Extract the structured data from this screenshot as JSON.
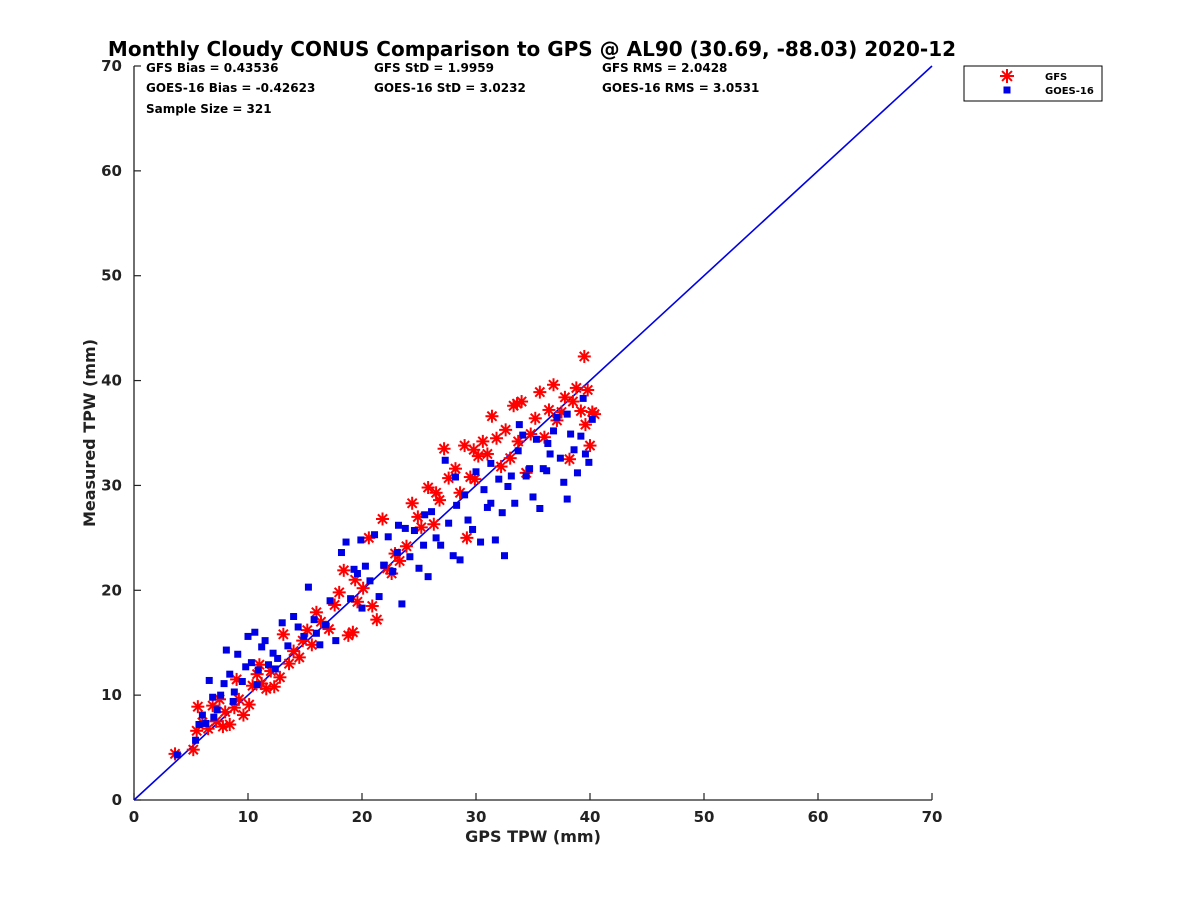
{
  "chart_data": {
    "type": "scatter",
    "title": "Monthly Cloudy CONUS Comparison to GPS @ AL90 (30.69, -88.03) 2020-12",
    "xlabel": "GPS TPW (mm)",
    "ylabel": "Measured TPW (mm)",
    "xlim": [
      0,
      70
    ],
    "ylim": [
      0,
      70
    ],
    "xticks": [
      "0",
      "10",
      "20",
      "30",
      "40",
      "50",
      "60",
      "70"
    ],
    "yticks": [
      "0",
      "10",
      "20",
      "30",
      "40",
      "50",
      "60",
      "70"
    ],
    "grid": false,
    "legend_position": "top-right",
    "reference_line": {
      "from": [
        0,
        0
      ],
      "to": [
        70,
        70
      ],
      "color": "#0000e6"
    },
    "stats": [
      [
        "GFS Bias = 0.43536",
        "GFS StD = 1.9959",
        "GFS RMS = 2.0428"
      ],
      [
        "GOES-16 Bias = -0.42623",
        "GOES-16 StD = 3.0232",
        "GOES-16 RMS = 3.0531"
      ],
      [
        "Sample Size = 321",
        "",
        ""
      ]
    ],
    "series": [
      {
        "name": "GFS",
        "marker": "asterisk",
        "color": "#ff0000",
        "points": [
          [
            3.6,
            4.4
          ],
          [
            5.2,
            4.8
          ],
          [
            5.5,
            6.6
          ],
          [
            5.6,
            8.9
          ],
          [
            6.0,
            7.4
          ],
          [
            6.5,
            6.8
          ],
          [
            6.9,
            9.0
          ],
          [
            7.2,
            7.5
          ],
          [
            7.8,
            7.0
          ],
          [
            8.0,
            8.4
          ],
          [
            8.4,
            7.2
          ],
          [
            8.8,
            8.8
          ],
          [
            9.2,
            9.6
          ],
          [
            9.6,
            8.1
          ],
          [
            10.1,
            9.1
          ],
          [
            10.4,
            10.9
          ],
          [
            10.8,
            12.0
          ],
          [
            11.2,
            11.1
          ],
          [
            11.6,
            10.6
          ],
          [
            12.0,
            12.3
          ],
          [
            12.3,
            10.8
          ],
          [
            12.8,
            11.7
          ],
          [
            13.1,
            15.8
          ],
          [
            13.6,
            13.0
          ],
          [
            14.0,
            14.2
          ],
          [
            14.5,
            13.6
          ],
          [
            15.2,
            16.2
          ],
          [
            15.6,
            14.8
          ],
          [
            16.0,
            17.9
          ],
          [
            16.4,
            17.0
          ],
          [
            17.1,
            16.3
          ],
          [
            17.6,
            18.6
          ],
          [
            18.0,
            19.8
          ],
          [
            18.4,
            21.9
          ],
          [
            18.8,
            15.7
          ],
          [
            19.2,
            16.0
          ],
          [
            19.6,
            18.9
          ],
          [
            20.1,
            20.2
          ],
          [
            20.6,
            25.0
          ],
          [
            20.9,
            18.5
          ],
          [
            21.3,
            17.2
          ],
          [
            21.8,
            26.8
          ],
          [
            22.2,
            22.1
          ],
          [
            22.6,
            21.6
          ],
          [
            23.3,
            22.8
          ],
          [
            23.9,
            24.2
          ],
          [
            24.4,
            28.3
          ],
          [
            24.9,
            27.0
          ],
          [
            25.2,
            26.0
          ],
          [
            25.8,
            29.8
          ],
          [
            26.3,
            26.3
          ],
          [
            26.8,
            28.6
          ],
          [
            27.2,
            33.5
          ],
          [
            27.6,
            30.7
          ],
          [
            28.2,
            31.6
          ],
          [
            28.6,
            29.3
          ],
          [
            29.0,
            33.8
          ],
          [
            29.2,
            25.0
          ],
          [
            29.5,
            30.8
          ],
          [
            29.8,
            33.4
          ],
          [
            30.2,
            32.8
          ],
          [
            30.6,
            34.2
          ],
          [
            31.0,
            33.0
          ],
          [
            31.4,
            36.6
          ],
          [
            31.8,
            34.5
          ],
          [
            32.2,
            31.8
          ],
          [
            32.6,
            35.3
          ],
          [
            33.0,
            32.6
          ],
          [
            33.3,
            37.6
          ],
          [
            33.7,
            34.2
          ],
          [
            34.0,
            38.0
          ],
          [
            34.4,
            31.2
          ],
          [
            34.8,
            34.9
          ],
          [
            35.2,
            36.4
          ],
          [
            35.6,
            38.9
          ],
          [
            36.0,
            34.6
          ],
          [
            36.4,
            37.2
          ],
          [
            36.8,
            39.6
          ],
          [
            37.1,
            36.2
          ],
          [
            37.5,
            37.0
          ],
          [
            37.8,
            38.4
          ],
          [
            38.2,
            32.5
          ],
          [
            38.5,
            38.0
          ],
          [
            38.8,
            39.3
          ],
          [
            39.2,
            37.1
          ],
          [
            39.5,
            42.3
          ],
          [
            39.6,
            35.8
          ],
          [
            39.8,
            39.1
          ],
          [
            40.0,
            33.8
          ],
          [
            40.2,
            37.0
          ],
          [
            40.4,
            36.8
          ],
          [
            7.5,
            9.6
          ],
          [
            9.0,
            11.5
          ],
          [
            11.0,
            12.9
          ],
          [
            14.8,
            15.2
          ],
          [
            19.4,
            21.0
          ],
          [
            22.9,
            23.5
          ],
          [
            26.5,
            29.3
          ],
          [
            29.9,
            30.6
          ],
          [
            33.6,
            37.8
          ]
        ]
      },
      {
        "name": "GOES-16",
        "marker": "square",
        "color": "#0000e6",
        "points": [
          [
            3.8,
            4.3
          ],
          [
            5.4,
            5.7
          ],
          [
            5.7,
            7.2
          ],
          [
            6.0,
            8.1
          ],
          [
            6.3,
            7.3
          ],
          [
            6.6,
            11.4
          ],
          [
            7.0,
            7.9
          ],
          [
            7.3,
            8.6
          ],
          [
            7.6,
            10.0
          ],
          [
            7.9,
            11.1
          ],
          [
            8.1,
            14.3
          ],
          [
            8.4,
            12.0
          ],
          [
            8.7,
            9.4
          ],
          [
            9.1,
            13.9
          ],
          [
            9.5,
            11.3
          ],
          [
            9.8,
            12.7
          ],
          [
            10.0,
            15.6
          ],
          [
            10.3,
            13.1
          ],
          [
            10.6,
            16.0
          ],
          [
            10.9,
            12.4
          ],
          [
            11.2,
            14.6
          ],
          [
            11.5,
            15.2
          ],
          [
            11.8,
            12.9
          ],
          [
            12.2,
            14.0
          ],
          [
            12.6,
            13.5
          ],
          [
            13.0,
            16.9
          ],
          [
            13.5,
            14.7
          ],
          [
            14.0,
            17.5
          ],
          [
            14.4,
            16.5
          ],
          [
            14.9,
            15.6
          ],
          [
            15.3,
            20.3
          ],
          [
            15.8,
            17.2
          ],
          [
            16.3,
            14.8
          ],
          [
            16.8,
            16.7
          ],
          [
            17.2,
            19.0
          ],
          [
            17.7,
            15.2
          ],
          [
            18.2,
            23.6
          ],
          [
            18.6,
            24.6
          ],
          [
            19.0,
            19.2
          ],
          [
            19.3,
            22.0
          ],
          [
            19.6,
            21.6
          ],
          [
            19.9,
            24.8
          ],
          [
            20.3,
            22.3
          ],
          [
            20.7,
            20.9
          ],
          [
            21.1,
            25.3
          ],
          [
            21.5,
            19.4
          ],
          [
            21.9,
            22.4
          ],
          [
            22.3,
            25.1
          ],
          [
            22.7,
            21.8
          ],
          [
            23.1,
            23.6
          ],
          [
            23.5,
            18.7
          ],
          [
            23.8,
            25.9
          ],
          [
            24.2,
            23.2
          ],
          [
            24.6,
            25.7
          ],
          [
            25.0,
            22.1
          ],
          [
            25.4,
            24.3
          ],
          [
            25.8,
            21.3
          ],
          [
            26.1,
            27.5
          ],
          [
            26.5,
            25.0
          ],
          [
            26.9,
            24.3
          ],
          [
            27.3,
            32.4
          ],
          [
            27.6,
            26.4
          ],
          [
            28.0,
            23.3
          ],
          [
            28.3,
            28.1
          ],
          [
            28.6,
            22.9
          ],
          [
            29.0,
            29.1
          ],
          [
            29.3,
            26.7
          ],
          [
            29.7,
            25.8
          ],
          [
            30.0,
            31.3
          ],
          [
            30.4,
            24.6
          ],
          [
            30.7,
            29.6
          ],
          [
            31.0,
            27.9
          ],
          [
            31.3,
            28.3
          ],
          [
            31.7,
            24.8
          ],
          [
            32.0,
            30.6
          ],
          [
            32.3,
            27.4
          ],
          [
            32.5,
            23.3
          ],
          [
            32.8,
            29.9
          ],
          [
            33.1,
            30.9
          ],
          [
            33.4,
            28.3
          ],
          [
            33.7,
            33.3
          ],
          [
            34.1,
            34.8
          ],
          [
            34.4,
            30.9
          ],
          [
            34.7,
            31.6
          ],
          [
            35.0,
            28.9
          ],
          [
            35.3,
            34.4
          ],
          [
            35.6,
            27.8
          ],
          [
            35.9,
            31.6
          ],
          [
            36.2,
            31.4
          ],
          [
            36.5,
            33.0
          ],
          [
            36.8,
            35.2
          ],
          [
            37.1,
            36.5
          ],
          [
            37.4,
            32.6
          ],
          [
            37.7,
            30.3
          ],
          [
            38.0,
            28.7
          ],
          [
            38.3,
            34.9
          ],
          [
            38.6,
            33.4
          ],
          [
            38.9,
            31.2
          ],
          [
            39.2,
            34.7
          ],
          [
            39.6,
            33.0
          ],
          [
            39.9,
            32.2
          ],
          [
            40.2,
            36.3
          ],
          [
            6.9,
            9.8
          ],
          [
            8.8,
            10.3
          ],
          [
            10.8,
            11.0
          ],
          [
            12.4,
            12.5
          ],
          [
            16.0,
            15.9
          ],
          [
            20.0,
            18.3
          ],
          [
            23.2,
            26.2
          ],
          [
            25.5,
            27.2
          ],
          [
            28.2,
            30.8
          ],
          [
            31.3,
            32.1
          ],
          [
            33.8,
            35.8
          ],
          [
            36.3,
            34.0
          ],
          [
            38.0,
            36.8
          ],
          [
            39.4,
            38.3
          ]
        ]
      }
    ]
  }
}
